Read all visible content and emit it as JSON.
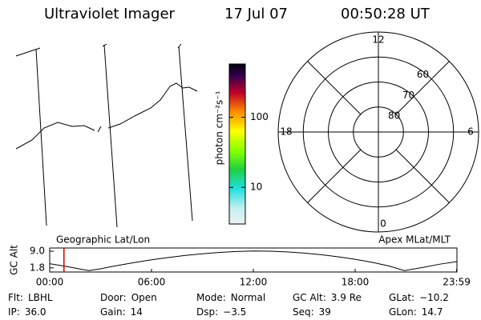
{
  "header": {
    "title": "Ultraviolet Imager",
    "date": "17 Jul 07",
    "time": "00:50:28 UT"
  },
  "colorbar": {
    "label": "photon cm⁻²s⁻¹",
    "scale": "log",
    "range": [
      3,
      575
    ],
    "ticks": [
      100,
      10
    ]
  },
  "polar": {
    "rlim": [
      90,
      50
    ],
    "rings": [
      60,
      70,
      80
    ],
    "mlt_ticks": [
      12,
      18,
      6,
      0
    ]
  },
  "chart_data": {
    "type": "line",
    "ylabel": "GC Alt",
    "left_label": "Geographic Lat/Lon",
    "right_label": "Apex MLat/MLT",
    "x": [
      0,
      1,
      2,
      2.3,
      3,
      4,
      5,
      6,
      7,
      8,
      9,
      10,
      11,
      12,
      13,
      14,
      15,
      16,
      17,
      18,
      19,
      20,
      20.9,
      22,
      23,
      24
    ],
    "series": [
      {
        "name": "GC Alt",
        "color": "#000000",
        "values": [
          3.6,
          2.4,
          1.0,
          0.6,
          1.4,
          2.8,
          4.1,
          5.3,
          6.3,
          7.2,
          7.9,
          8.5,
          8.9,
          9.1,
          9.0,
          8.7,
          8.2,
          7.5,
          6.6,
          5.5,
          4.2,
          2.6,
          0.6,
          2.0,
          3.4,
          4.5
        ]
      }
    ],
    "xlim": [
      0,
      24
    ],
    "ylim": [
      0,
      10.4
    ],
    "xticks": [
      {
        "value": 0,
        "label": "00:00"
      },
      {
        "value": 6,
        "label": "06:00"
      },
      {
        "value": 12,
        "label": "12:00"
      },
      {
        "value": 18,
        "label": "18:00"
      },
      {
        "value": 23.98,
        "label": "23:59"
      }
    ],
    "yticks": [
      {
        "value": 9,
        "label": "9.0"
      },
      1.8
    ],
    "marker": 0.84,
    "marker_color": "#d00000"
  },
  "status": [
    [
      {
        "label": "Flt:",
        "value": "LBHL"
      },
      {
        "label": "Door:",
        "value": "Open"
      },
      {
        "label": "Mode:",
        "value": "Normal"
      },
      {
        "label": "GC Alt:",
        "value": "3.9 Re"
      },
      {
        "label": "GLat:",
        "value": "−10.2"
      }
    ],
    [
      {
        "label": "IP:",
        "value": "36.0"
      },
      {
        "label": "Gain:",
        "value": "14"
      },
      {
        "label": "Dsp:",
        "value": "−3.5"
      },
      {
        "label": "Seq:",
        "value": "39"
      },
      {
        "label": "GLon:",
        "value": "14.7"
      }
    ]
  ]
}
